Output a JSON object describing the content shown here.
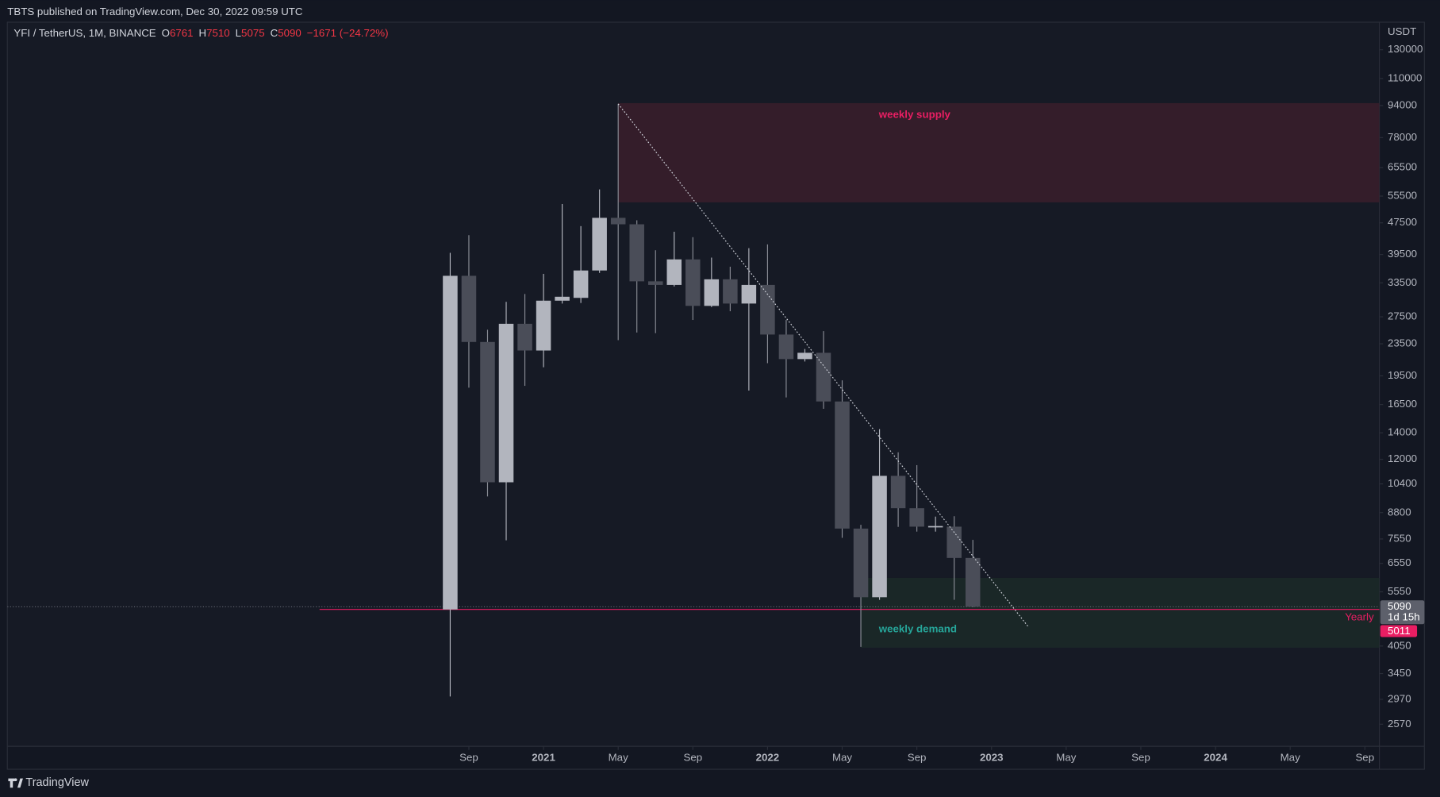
{
  "chart_data": {
    "type": "candlestick",
    "published": "TBTS published on TradingView.com, Dec 30, 2022 09:59 UTC",
    "legend": {
      "symbol": "YFI / TetherUS, 1M, BINANCE",
      "ohlc": [
        {
          "label": "O",
          "value": 6761
        },
        {
          "label": "H",
          "value": 7510
        },
        {
          "label": "L",
          "value": 5075
        },
        {
          "label": "C",
          "value": 5090
        }
      ],
      "change": "−1671 (−24.72%)"
    },
    "currency": "USDT",
    "brand": "TradingView",
    "countdown": "1d 15h",
    "x": [
      "2020-08",
      "2020-09",
      "2020-10",
      "2020-11",
      "2020-12",
      "2021-01",
      "2021-02",
      "2021-03",
      "2021-04",
      "2021-05",
      "2021-06",
      "2021-07",
      "2021-08",
      "2021-09",
      "2021-10",
      "2021-11",
      "2021-12",
      "2022-01",
      "2022-02",
      "2022-03",
      "2022-04",
      "2022-05",
      "2022-06",
      "2022-07",
      "2022-08",
      "2022-09",
      "2022-10",
      "2022-11",
      "2022-12"
    ],
    "open": [
      5010,
      34900,
      23750,
      10500,
      26400,
      22600,
      30200,
      30700,
      36000,
      48900,
      47100,
      33800,
      33100,
      38400,
      29300,
      34200,
      29700,
      33100,
      24800,
      21500,
      22300,
      16800,
      8020,
      5380,
      10900,
      9030,
      8110,
      8110,
      6761
    ],
    "high": [
      39900,
      44200,
      25500,
      30000,
      31400,
      35300,
      53000,
      46600,
      57700,
      94900,
      48200,
      40500,
      45100,
      43700,
      38800,
      36800,
      41000,
      41900,
      27000,
      22800,
      25300,
      19000,
      8200,
      14300,
      12500,
      11600,
      8600,
      8620,
      7510
    ],
    "low": [
      3020,
      18200,
      9670,
      7490,
      18400,
      20500,
      29700,
      29800,
      35500,
      24000,
      25100,
      25000,
      32800,
      27000,
      29100,
      28400,
      17900,
      21000,
      17200,
      21200,
      16100,
      7600,
      4030,
      5300,
      8100,
      7880,
      7880,
      5300,
      5075
    ],
    "close": [
      34900,
      23750,
      10500,
      26400,
      22600,
      30200,
      30900,
      36000,
      48900,
      47100,
      33800,
      33100,
      38400,
      29300,
      34200,
      29700,
      33100,
      24800,
      21500,
      22300,
      16800,
      8020,
      5380,
      10900,
      9030,
      8110,
      8140,
      6761,
      5090
    ],
    "up_color": "#b2b5be",
    "down_color": "#4a4d58",
    "log_scale": true,
    "ylim": [
      2260,
      152600
    ],
    "yticks": [
      130000,
      110000,
      94000,
      78000,
      65500,
      55500,
      47500,
      39500,
      33500,
      27500,
      23500,
      19500,
      16500,
      14000,
      12000,
      10400,
      8800,
      7550,
      6550,
      5550,
      4050,
      3450,
      2970,
      2570
    ],
    "xlim": [
      "2018-08",
      "2024-10"
    ],
    "xticks": [
      {
        "value": "2020-09",
        "label": "Sep"
      },
      {
        "value": "2021-01",
        "label": "2021"
      },
      {
        "value": "2021-05",
        "label": "May"
      },
      {
        "value": "2021-09",
        "label": "Sep"
      },
      {
        "value": "2022-01",
        "label": "2022"
      },
      {
        "value": "2022-05",
        "label": "May"
      },
      {
        "value": "2022-09",
        "label": "Sep"
      },
      {
        "value": "2023-01",
        "label": "2023"
      },
      {
        "value": "2023-05",
        "label": "May"
      },
      {
        "value": "2023-09",
        "label": "Sep"
      },
      {
        "value": "2024-01",
        "label": "2024"
      },
      {
        "value": "2024-05",
        "label": "May"
      },
      {
        "value": "2024-09",
        "label": "Sep"
      }
    ],
    "zones": [
      {
        "label": "weekly supply",
        "from": "2021-05",
        "top": 95300,
        "bottom": 53500,
        "color": "#3a1f2b",
        "text_color": "#e91e63"
      },
      {
        "label": "weekly demand",
        "from": "2022-06",
        "top": 6020,
        "bottom": 4010,
        "color": "#1b2a28",
        "text_color": "#26a69a"
      }
    ],
    "trendline": {
      "from": {
        "x": "2021-05",
        "y": 94900
      },
      "to": {
        "x": "2023-03",
        "y": 4510
      }
    },
    "level": {
      "label": "Yearly",
      "value": 5011,
      "from": "2020-01",
      "color": "#e91e63"
    }
  }
}
